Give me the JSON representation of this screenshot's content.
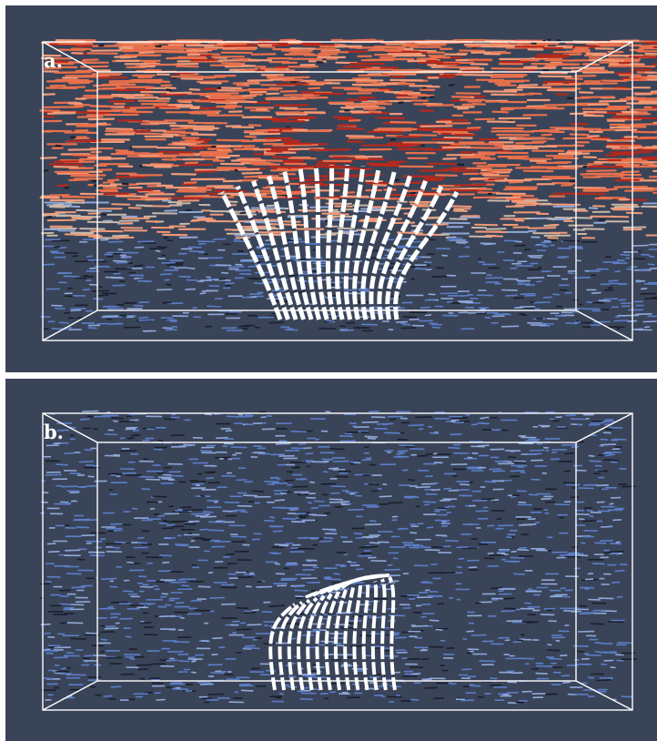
{
  "panels": [
    {
      "id": "a",
      "label": "a.",
      "background": "#3a4459",
      "scene": "vector-field-high-activity"
    },
    {
      "id": "b",
      "label": "b.",
      "background": "#3a4459",
      "scene": "vector-field-low-activity"
    }
  ],
  "colors": {
    "box_edges": "#ffffff",
    "streamlines": "#ffffff",
    "warm_high": "#b5281c",
    "warm_mid": "#e8704c",
    "warm_light": "#f09a78",
    "neutral": "#c9b8a8",
    "cool_light": "#8fa8d8",
    "cool": "#5b7ec8",
    "dark": "#1a1f2c"
  }
}
